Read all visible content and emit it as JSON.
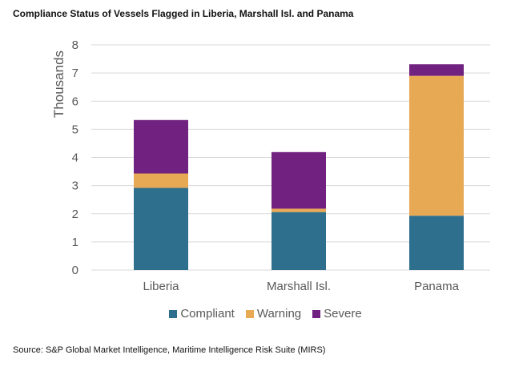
{
  "chart_data": {
    "type": "bar",
    "stacked": true,
    "title": "Compliance Status of Vessels Flagged in Liberia, Marshall Isl. and Panama",
    "xlabel": "",
    "ylabel": "Thousands",
    "ylim": [
      0,
      8
    ],
    "yticks": [
      "0",
      "1",
      "2",
      "3",
      "4",
      "5",
      "6",
      "7",
      "8"
    ],
    "categories": [
      "Liberia",
      "Marshall Isl.",
      "Panama"
    ],
    "series": [
      {
        "name": "Compliant",
        "color": "#2e6f8e",
        "values": [
          2.92,
          2.06,
          1.93
        ]
      },
      {
        "name": "Warning",
        "color": "#e8a955",
        "values": [
          0.51,
          0.12,
          4.97
        ]
      },
      {
        "name": "Severe",
        "color": "#71217f",
        "values": [
          1.9,
          2.01,
          0.41
        ]
      }
    ],
    "grid": true,
    "legend_position": "bottom",
    "source": "Source: S&P Global Market Intelligence, Maritime Intelligence Risk Suite (MIRS)"
  }
}
